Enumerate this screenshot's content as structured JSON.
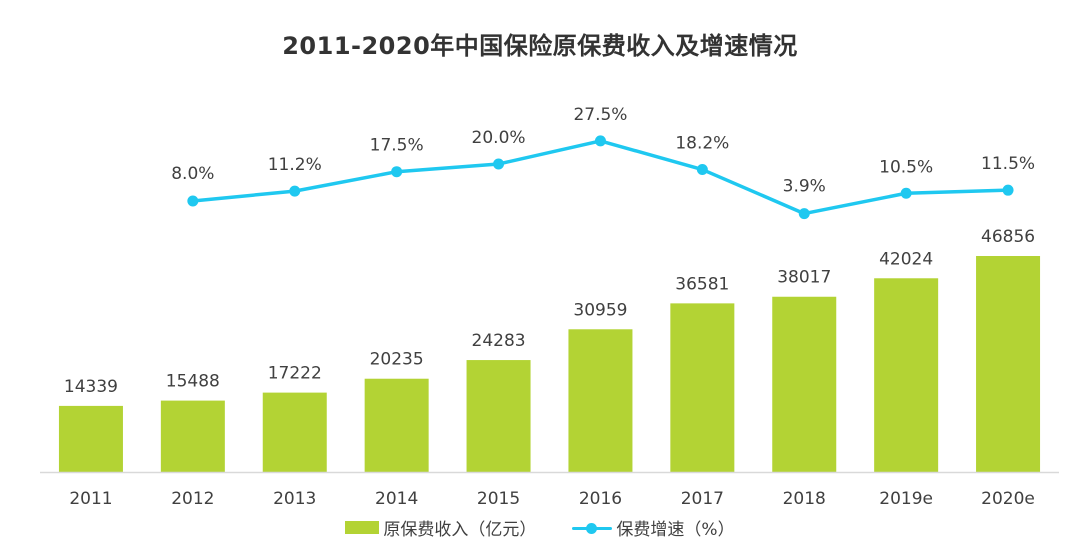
{
  "chart_data": {
    "type": "bar+line",
    "title": "2011-2020年中国保险原保费收入及增速情况",
    "categories": [
      "2011",
      "2012",
      "2013",
      "2014",
      "2015",
      "2016",
      "2017",
      "2018",
      "2019e",
      "2020e"
    ],
    "series": [
      {
        "name": "原保费收入（亿元）",
        "type": "bar",
        "color": "#b3d334",
        "values": [
          14339,
          15488,
          17222,
          20235,
          24283,
          30959,
          36581,
          38017,
          42024,
          46856
        ],
        "labels": [
          "14339",
          "15488",
          "17222",
          "20235",
          "24283",
          "30959",
          "36581",
          "38017",
          "42024",
          "46856"
        ]
      },
      {
        "name": "保费增速（%）",
        "type": "line",
        "color": "#1fc8f0",
        "values": [
          null,
          8.0,
          11.2,
          17.5,
          20.0,
          27.5,
          18.2,
          3.9,
          10.5,
          11.5
        ],
        "labels": [
          "",
          "8.0%",
          "11.2%",
          "17.5%",
          "20.0%",
          "27.5%",
          "18.2%",
          "3.9%",
          "10.5%",
          "11.5%"
        ]
      }
    ],
    "xlabel": "",
    "ylabel": "",
    "ylim_bar": [
      0,
      50000
    ],
    "grid": false,
    "legend": {
      "position": "bottom",
      "entries": [
        "原保费收入（亿元）",
        "保费增速（%）"
      ]
    }
  }
}
